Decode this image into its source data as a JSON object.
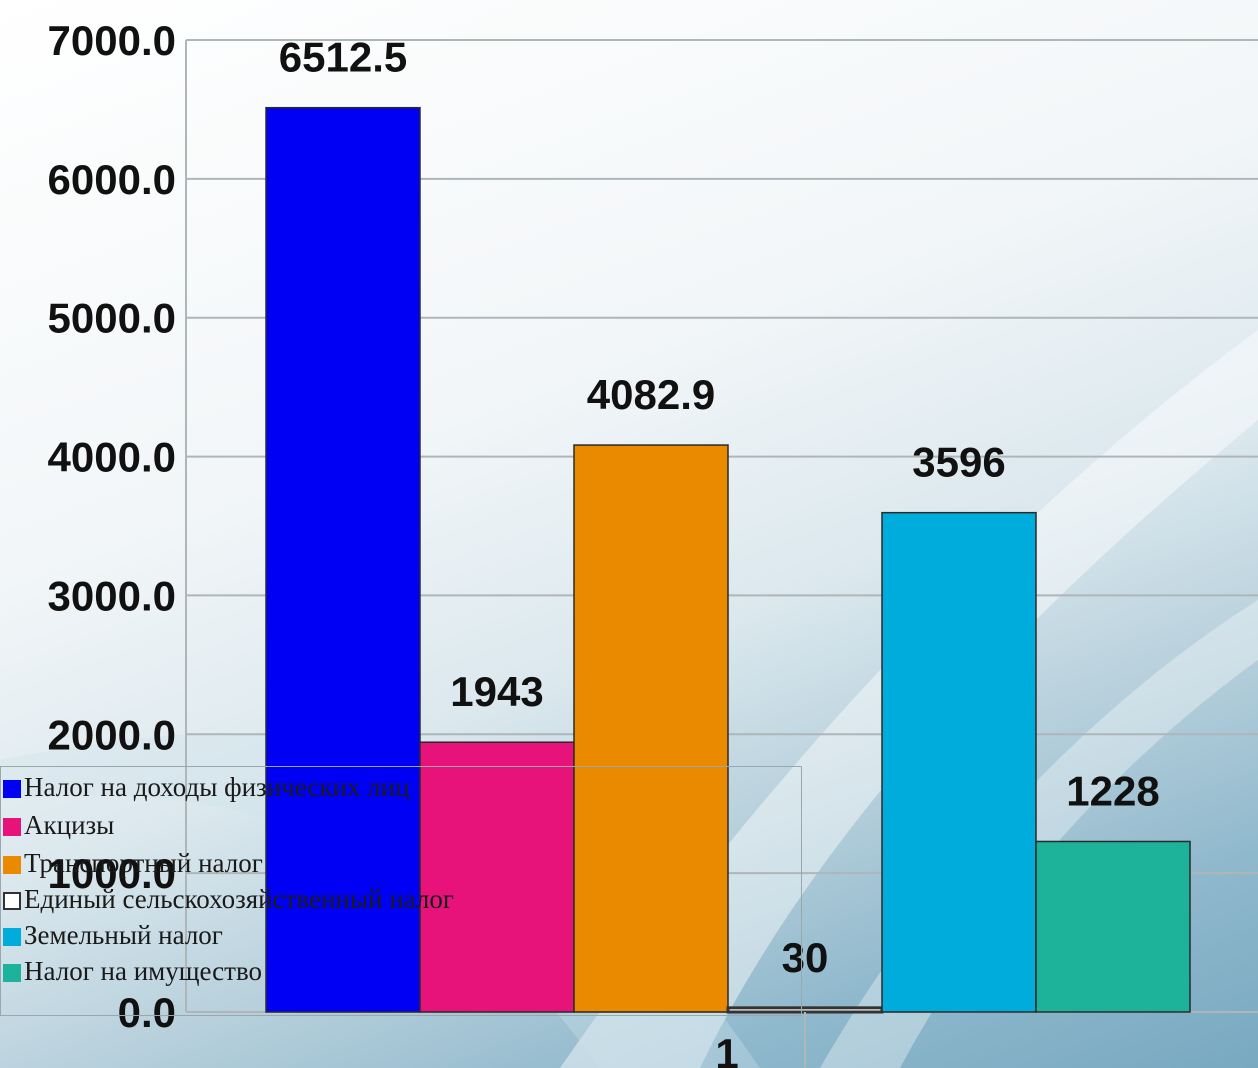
{
  "chart_data": {
    "type": "bar",
    "categories": [
      "1"
    ],
    "series": [
      {
        "name": "Налог на доходы физических лиц",
        "values": [
          6512.5
        ],
        "label": "6512.5",
        "color": "#0000f5"
      },
      {
        "name": "Акцизы",
        "values": [
          1943
        ],
        "label": "1943",
        "color": "#e8137a"
      },
      {
        "name": "Транспортный налог",
        "values": [
          4082.9
        ],
        "label": "4082.9",
        "color": "#ea8a00"
      },
      {
        "name": "Единый сельскохозяйственный налог",
        "values": [
          30
        ],
        "label": "30",
        "color": "#ffffff"
      },
      {
        "name": "Земельный налог",
        "values": [
          3596
        ],
        "label": "3596",
        "color": "#00acdc"
      },
      {
        "name": "Налог на имущество",
        "values": [
          1228
        ],
        "label": "1228",
        "color": "#1cb39a"
      }
    ],
    "yticks": [
      "0.0",
      "1000.0",
      "2000.0",
      "3000.0",
      "4000.0",
      "5000.0",
      "6000.0",
      "7000.0"
    ],
    "ylim": [
      0,
      7000
    ],
    "grid": true,
    "legend_position": "bottom-left"
  }
}
